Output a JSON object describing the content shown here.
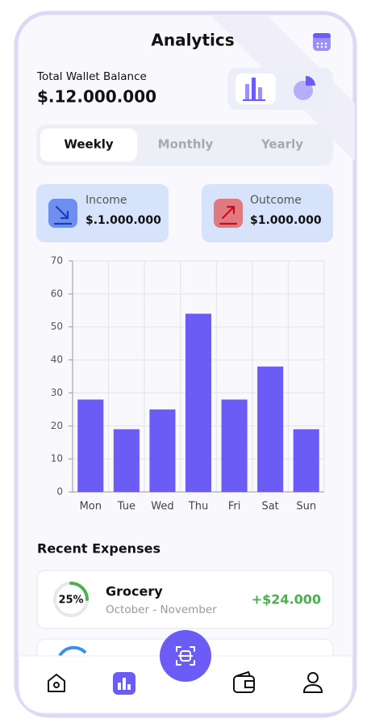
{
  "header": {
    "title": "Analytics"
  },
  "wallet": {
    "label": "Total Wallet Balance",
    "balance": "$.12.000.000"
  },
  "tabs": [
    "Weekly",
    "Monthly",
    "Yearly"
  ],
  "summary": [
    {
      "label": "Income",
      "amount": "$.1.000.000"
    },
    {
      "label": "Outcome",
      "amount": "$1.000.000"
    }
  ],
  "chart_data": {
    "type": "bar",
    "categories": [
      "Mon",
      "Tue",
      "Wed",
      "Thu",
      "Fri",
      "Sat",
      "Sun"
    ],
    "values": [
      28,
      19,
      25,
      54,
      28,
      38,
      19
    ],
    "color": "#6b5cf6",
    "ylim": [
      0,
      70
    ],
    "yticks": [
      0,
      10,
      20,
      30,
      40,
      50,
      60,
      70
    ],
    "grid": true
  },
  "recent": {
    "title": "Recent Expenses",
    "items": [
      {
        "name": "Grocery",
        "period": "October - November",
        "amount": "+$24.000",
        "progress": 25,
        "progress_label": "25%"
      }
    ]
  }
}
